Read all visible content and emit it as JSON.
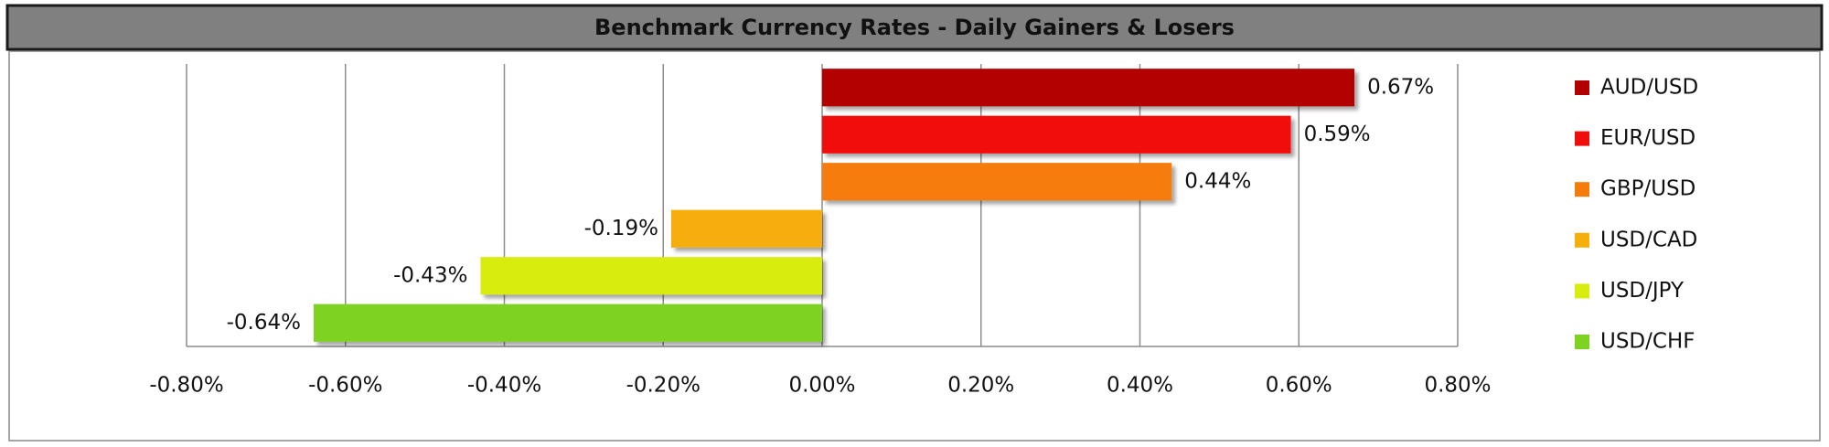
{
  "chart_data": {
    "type": "hbar",
    "title": "Benchmark Currency Rates - Daily Gainers & Losers",
    "series": [
      {
        "name": "AUD/USD",
        "color": "#b30000",
        "values": [
          0.67
        ],
        "value_labels": [
          "0.67%"
        ]
      },
      {
        "name": "EUR/USD",
        "color": "#f20d0d",
        "values": [
          0.59
        ],
        "value_labels": [
          "0.59%"
        ]
      },
      {
        "name": "GBP/USD",
        "color": "#f57c0a",
        "values": [
          0.44
        ],
        "value_labels": [
          "0.44%"
        ]
      },
      {
        "name": "USD/CAD",
        "color": "#f5ae0a",
        "values": [
          -0.19
        ],
        "value_labels": [
          "-0.19%"
        ]
      },
      {
        "name": "USD/JPY",
        "color": "#d8ec0e",
        "values": [
          -0.43
        ],
        "value_labels": [
          "-0.43%"
        ]
      },
      {
        "name": "USD/CHF",
        "color": "#7ed321",
        "values": [
          -0.64
        ],
        "value_labels": [
          "-0.64%"
        ]
      }
    ],
    "xlim": [
      -0.8,
      0.8
    ],
    "xticks": [
      {
        "value": -0.8,
        "label": "-0.80%"
      },
      {
        "value": -0.6,
        "label": "-0.60%"
      },
      {
        "value": -0.4,
        "label": "-0.40%"
      },
      {
        "value": -0.2,
        "label": "-0.20%"
      },
      {
        "value": 0,
        "label": "0.00%"
      },
      {
        "value": 0.2,
        "label": "0.20%"
      },
      {
        "value": 0.4,
        "label": "0.40%"
      },
      {
        "value": 0.6,
        "label": "0.60%"
      },
      {
        "value": 0.8,
        "label": "0.80%"
      }
    ],
    "grid": true,
    "legend": "right"
  }
}
